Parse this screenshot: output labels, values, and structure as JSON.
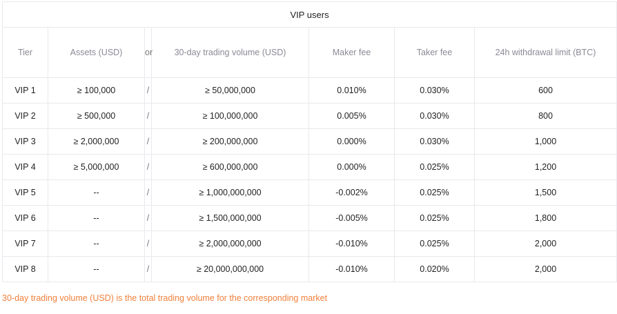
{
  "table": {
    "title": "VIP users",
    "headers": {
      "tier": "Tier",
      "assets": "Assets (USD)",
      "or": "or",
      "volume": "30-day trading volume (USD)",
      "maker": "Maker fee",
      "taker": "Taker fee",
      "withdrawal": "24h withdrawal limit (BTC)"
    },
    "rows": [
      {
        "tier": "VIP 1",
        "assets": "≥ 100,000",
        "sep": "/",
        "volume": "≥ 50,000,000",
        "maker": "0.010%",
        "taker": "0.030%",
        "withdrawal": "600"
      },
      {
        "tier": "VIP 2",
        "assets": "≥ 500,000",
        "sep": "/",
        "volume": "≥ 100,000,000",
        "maker": "0.005%",
        "taker": "0.030%",
        "withdrawal": "800"
      },
      {
        "tier": "VIP 3",
        "assets": "≥ 2,000,000",
        "sep": "/",
        "volume": "≥ 200,000,000",
        "maker": "0.000%",
        "taker": "0.030%",
        "withdrawal": "1,000"
      },
      {
        "tier": "VIP 4",
        "assets": "≥ 5,000,000",
        "sep": "/",
        "volume": "≥ 600,000,000",
        "maker": "0.000%",
        "taker": "0.025%",
        "withdrawal": "1,200"
      },
      {
        "tier": "VIP 5",
        "assets": "--",
        "sep": "/",
        "volume": "≥ 1,000,000,000",
        "maker": "-0.002%",
        "taker": "0.025%",
        "withdrawal": "1,500"
      },
      {
        "tier": "VIP 6",
        "assets": "--",
        "sep": "/",
        "volume": "≥ 1,500,000,000",
        "maker": "-0.005%",
        "taker": "0.025%",
        "withdrawal": "1,800"
      },
      {
        "tier": "VIP 7",
        "assets": "--",
        "sep": "/",
        "volume": "≥ 2,000,000,000",
        "maker": "-0.010%",
        "taker": "0.025%",
        "withdrawal": "2,000"
      },
      {
        "tier": "VIP 8",
        "assets": "--",
        "sep": "/",
        "volume": "≥ 20,000,000,000",
        "maker": "-0.010%",
        "taker": "0.020%",
        "withdrawal": "2,000"
      }
    ]
  },
  "footnote": "30-day trading volume (USD) is the total trading volume for the corresponding market",
  "colors": {
    "footnote": "#f0803c",
    "header_text": "#8a8a95",
    "border": "#e9e9ee"
  }
}
